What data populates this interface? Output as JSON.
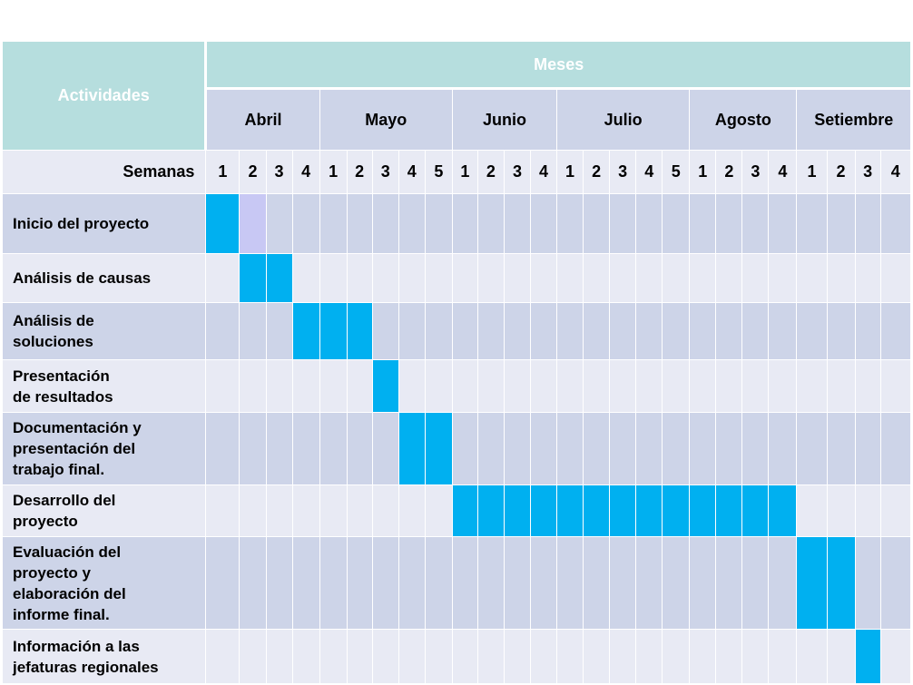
{
  "header": {
    "activities_label": "Actividades",
    "months_label": "Meses",
    "weeks_label": "Semanas"
  },
  "months": [
    {
      "name": "Abril",
      "weeks": [
        "1",
        "2",
        "3",
        "4"
      ]
    },
    {
      "name": "Mayo",
      "weeks": [
        "1",
        "2",
        "3",
        "4",
        "5"
      ]
    },
    {
      "name": "Junio",
      "weeks": [
        "1",
        "2",
        "3",
        "4"
      ]
    },
    {
      "name": "Julio",
      "weeks": [
        "1",
        "2",
        "3",
        "4",
        "5"
      ]
    },
    {
      "name": "Agosto",
      "weeks": [
        "1",
        "2",
        "3",
        "4"
      ]
    },
    {
      "name": "Setiembre",
      "weeks": [
        "1",
        "2",
        "3",
        "4"
      ]
    }
  ],
  "activities": [
    {
      "label": "Inicio del proyecto",
      "active": [
        0
      ],
      "tentative": [
        1
      ]
    },
    {
      "label": "Análisis de causas",
      "active": [
        1,
        2
      ],
      "tentative": []
    },
    {
      "label": "Análisis de\nsoluciones",
      "active": [
        3,
        4,
        5
      ],
      "tentative": []
    },
    {
      "label": "Presentación\nde resultados",
      "active": [
        6
      ],
      "tentative": []
    },
    {
      "label": "Documentación y\npresentación del\ntrabajo final.",
      "active": [
        7,
        8
      ],
      "tentative": []
    },
    {
      "label": "Desarrollo del\nproyecto",
      "active": [
        9,
        10,
        11,
        12,
        13,
        14,
        15,
        16,
        17,
        18,
        19,
        20,
        21
      ],
      "tentative": []
    },
    {
      "label": "Evaluación  del\nproyecto y\nelaboración del\ninforme  final.",
      "active": [
        22,
        23
      ],
      "tentative": []
    },
    {
      "label": "Información a las\njefaturas regionales",
      "active": [
        24
      ],
      "tentative": []
    }
  ]
}
